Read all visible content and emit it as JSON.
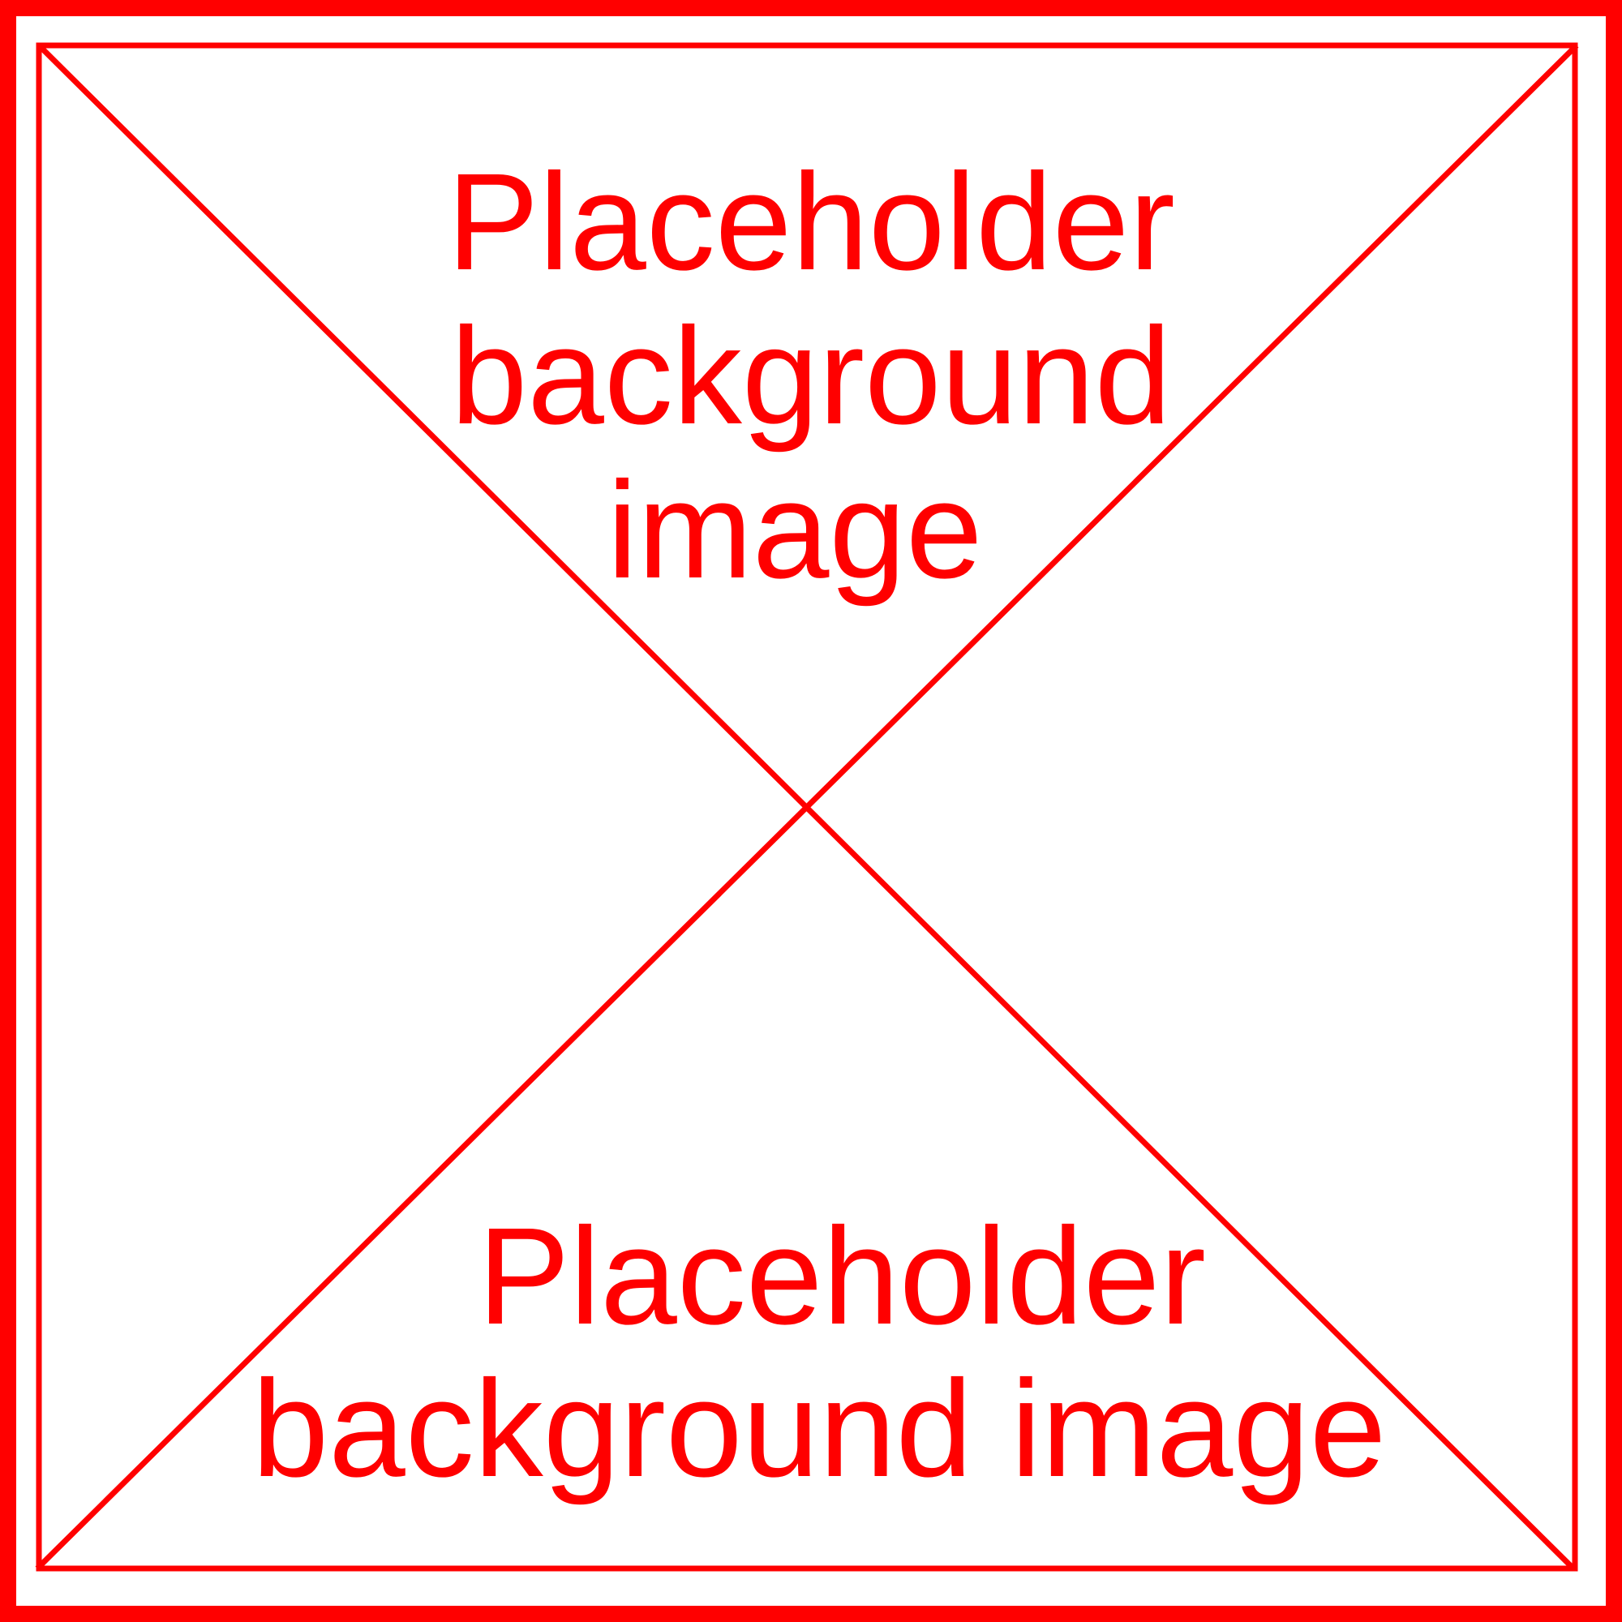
{
  "placeholder": {
    "color": "#ff0000",
    "top_text_lines": [
      "Placeholder",
      "background",
      "image"
    ],
    "bottom_text_lines": [
      "Placeholder",
      "background image"
    ]
  }
}
